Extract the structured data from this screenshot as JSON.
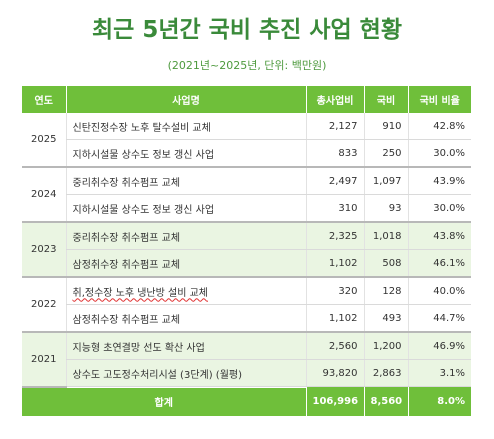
{
  "title": "최근 5년간 국비 추진 사업 현황",
  "subtitle": "(2021년~2025년, 단위: 백만원)",
  "colors": {
    "header_green": "#6fbf3a",
    "title_green": "#3a8a3a",
    "alt_row": "#eaf5e2"
  },
  "table": {
    "headers": [
      "연도",
      "사업명",
      "총사업비",
      "국비",
      "국비 비율"
    ],
    "groups": [
      {
        "year": "2025",
        "rows": [
          {
            "name": "신탄진정수장 노후 탈수설비 교체",
            "total": "2,127",
            "national": "910",
            "ratio": "42.8%"
          },
          {
            "name": "지하시설물 상수도 정보 갱신 사업",
            "total": "833",
            "national": "250",
            "ratio": "30.0%"
          }
        ]
      },
      {
        "year": "2024",
        "rows": [
          {
            "name": "중리취수장 취수펌프 교체",
            "total": "2,497",
            "national": "1,097",
            "ratio": "43.9%"
          },
          {
            "name": "지하시설물 상수도 정보 갱신 사업",
            "total": "310",
            "national": "93",
            "ratio": "30.0%"
          }
        ]
      },
      {
        "year": "2023",
        "rows": [
          {
            "name": "중리취수장 취수펌프 교체",
            "total": "2,325",
            "national": "1,018",
            "ratio": "43.8%"
          },
          {
            "name": "삼정취수장 취수펌프 교체",
            "total": "1,102",
            "national": "508",
            "ratio": "46.1%"
          }
        ]
      },
      {
        "year": "2022",
        "rows": [
          {
            "name": "취,정수장 노후 냉난방 설비 교체",
            "total": "320",
            "national": "128",
            "ratio": "40.0%"
          },
          {
            "name": "삼정취수장 취수펌프 교체",
            "total": "1,102",
            "national": "493",
            "ratio": "44.7%"
          }
        ]
      },
      {
        "year": "2021",
        "rows": [
          {
            "name": "지능형 초연결망 선도 확산 사업",
            "total": "2,560",
            "national": "1,200",
            "ratio": "46.9%"
          },
          {
            "name": "상수도 고도정수처리시설 (3단계) (월평)",
            "total": "93,820",
            "national": "2,863",
            "ratio": "3.1%"
          }
        ]
      }
    ],
    "total": {
      "label": "합계",
      "total": "106,996",
      "national": "8,560",
      "ratio": "8.0%"
    }
  }
}
